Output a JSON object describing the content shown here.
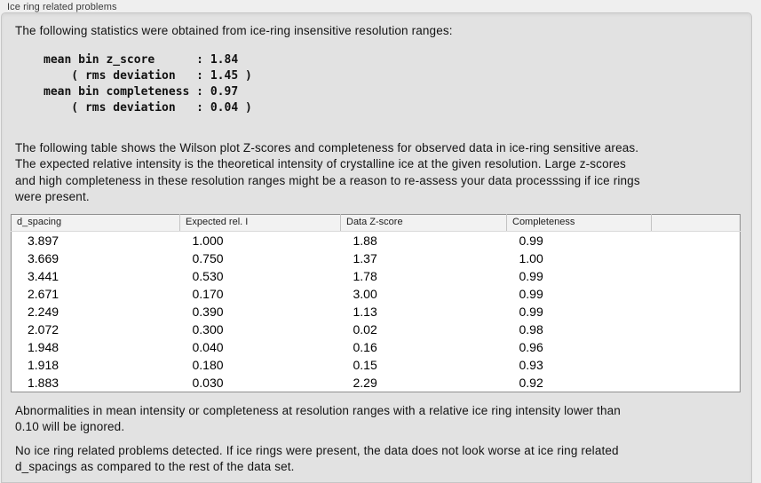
{
  "panel": {
    "title": "Ice ring related problems"
  },
  "intro": {
    "text": "The following statistics were obtained from ice-ring insensitive resolution ranges:"
  },
  "stats_block": {
    "lines": [
      "mean bin z_score      : 1.84",
      "    ( rms deviation   : 1.45 )",
      "mean bin completeness : 0.97",
      "    ( rms deviation   : 0.04 )"
    ]
  },
  "description": {
    "lines": [
      "The following table shows the Wilson plot Z-scores and completeness for observed data in ice-ring sensitive areas.",
      "The expected relative intensity is the theoretical intensity of crystalline ice at the given resolution. Large z-scores",
      "and high completeness in these resolution ranges might be a reason to re-assess your data processsing if ice rings",
      "were present."
    ]
  },
  "table": {
    "columns": [
      "d_spacing",
      "Expected rel. I",
      "Data Z-score",
      "Completeness"
    ],
    "rows": [
      [
        "3.897",
        "1.000",
        "1.88",
        "0.99"
      ],
      [
        "3.669",
        "0.750",
        "1.37",
        "1.00"
      ],
      [
        "3.441",
        "0.530",
        "1.78",
        "0.99"
      ],
      [
        "2.671",
        "0.170",
        "3.00",
        "0.99"
      ],
      [
        "2.249",
        "0.390",
        "1.13",
        "0.99"
      ],
      [
        "2.072",
        "0.300",
        "0.02",
        "0.98"
      ],
      [
        "1.948",
        "0.040",
        "0.16",
        "0.96"
      ],
      [
        "1.918",
        "0.180",
        "0.15",
        "0.93"
      ],
      [
        "1.883",
        "0.030",
        "2.29",
        "0.92"
      ]
    ]
  },
  "notes": {
    "ignore_lines": [
      "Abnormalities in mean intensity or completeness at resolution ranges with a relative ice ring intensity lower than",
      "0.10 will be ignored."
    ],
    "conclusion_lines": [
      "No ice ring related problems detected. If ice rings were present, the data does not look worse at ice ring related",
      "d_spacings as compared to the rest of the data set."
    ]
  },
  "colors": {
    "window_background": "#efefef",
    "panel_background": "#e2e2e2",
    "table_header_background": "#f2f2f2",
    "table_border": "#8f8f8f"
  }
}
